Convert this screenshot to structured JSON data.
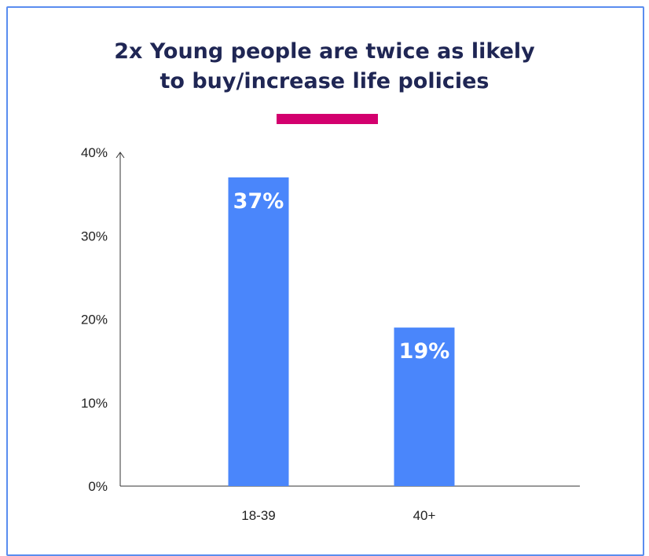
{
  "title": {
    "line1": "2x Young people are twice as likely",
    "line2": "to buy/increase life policies"
  },
  "colors": {
    "frame": "#5a8def",
    "title": "#1f2654",
    "accent": "#d3006e",
    "bar": "#4a86fb",
    "label": "#ffffff"
  },
  "chart_data": {
    "type": "bar",
    "categories": [
      "18-39",
      "40+"
    ],
    "values": [
      37,
      19
    ],
    "data_labels": [
      "37%",
      "19%"
    ],
    "yticks": [
      "0%",
      "10%",
      "20%",
      "30%",
      "40%"
    ],
    "ylim": [
      0,
      40
    ],
    "grid": false,
    "legend": "none"
  }
}
